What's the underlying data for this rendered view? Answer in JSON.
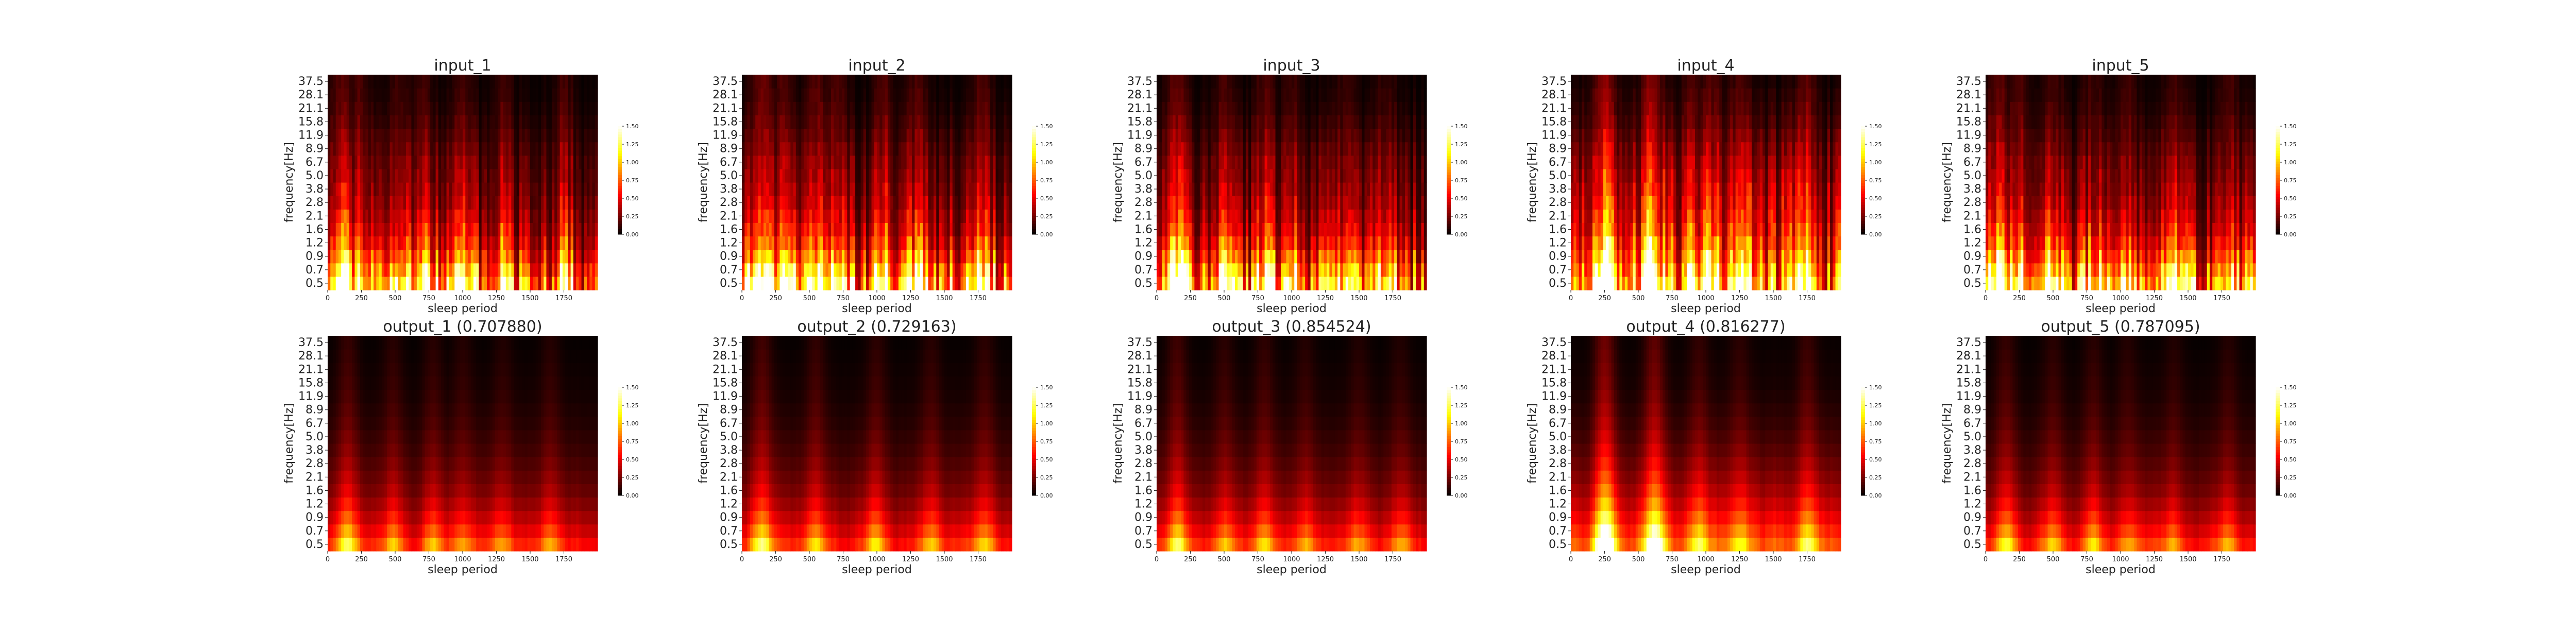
{
  "chart_data": [
    {
      "type": "heatmap",
      "title": "input_1",
      "xlabel": "sleep period",
      "ylabel": "frequency[Hz]",
      "xlim": [
        0,
        2000
      ],
      "x_ticks": [
        "0",
        "250",
        "500",
        "750",
        "1000",
        "1250",
        "1500",
        "1750"
      ],
      "y_ticks": [
        "0.5",
        "0.7",
        "0.9",
        "1.2",
        "1.6",
        "2.1",
        "2.8",
        "3.8",
        "5.0",
        "6.7",
        "8.9",
        "11.9",
        "15.8",
        "21.1",
        "28.1",
        "37.5"
      ],
      "colormap": "hot",
      "colorbar": {
        "range": [
          0,
          1.5
        ],
        "ticks": [
          "0.00",
          "0.25",
          "0.50",
          "0.75",
          "1.00",
          "1.25",
          "1.50"
        ]
      },
      "hotspots": [
        [
          100,
          0.95
        ],
        [
          240,
          0.75
        ],
        [
          520,
          0.6
        ],
        [
          700,
          0.65
        ],
        [
          1000,
          0.6
        ],
        [
          1300,
          0.6
        ],
        [
          1750,
          0.6
        ]
      ],
      "band_power": [
        1.1,
        0.9,
        0.7,
        0.55,
        0.45,
        0.38,
        0.32,
        0.28,
        0.25,
        0.22,
        0.18,
        0.14,
        0.1,
        0.07,
        0.05,
        0.04
      ],
      "smooth": false
    },
    {
      "type": "heatmap",
      "title": "input_2",
      "xlabel": "sleep period",
      "ylabel": "frequency[Hz]",
      "xlim": [
        0,
        2000
      ],
      "x_ticks": [
        "0",
        "250",
        "500",
        "750",
        "1000",
        "1250",
        "1500",
        "1750"
      ],
      "y_ticks": [
        "0.5",
        "0.7",
        "0.9",
        "1.2",
        "1.6",
        "2.1",
        "2.8",
        "3.8",
        "5.0",
        "6.7",
        "8.9",
        "11.9",
        "15.8",
        "21.1",
        "28.1",
        "37.5"
      ],
      "colormap": "hot",
      "colorbar": {
        "range": [
          0,
          1.5
        ],
        "ticks": [
          "0.00",
          "0.25",
          "0.50",
          "0.75",
          "1.00",
          "1.25",
          "1.50"
        ]
      },
      "hotspots": [
        [
          150,
          1.25
        ],
        [
          300,
          0.8
        ],
        [
          550,
          0.9
        ],
        [
          700,
          0.85
        ],
        [
          1050,
          0.8
        ],
        [
          1300,
          0.75
        ],
        [
          1780,
          0.8
        ]
      ],
      "band_power": [
        1.1,
        0.9,
        0.7,
        0.55,
        0.45,
        0.38,
        0.32,
        0.28,
        0.25,
        0.22,
        0.18,
        0.14,
        0.1,
        0.07,
        0.05,
        0.04
      ],
      "smooth": false
    },
    {
      "type": "heatmap",
      "title": "input_3",
      "xlabel": "sleep period",
      "ylabel": "frequency[Hz]",
      "xlim": [
        0,
        2000
      ],
      "x_ticks": [
        "0",
        "250",
        "500",
        "750",
        "1000",
        "1250",
        "1500",
        "1750"
      ],
      "y_ticks": [
        "0.5",
        "0.7",
        "0.9",
        "1.2",
        "1.6",
        "2.1",
        "2.8",
        "3.8",
        "5.0",
        "6.7",
        "8.9",
        "11.9",
        "15.8",
        "21.1",
        "28.1",
        "37.5"
      ],
      "colormap": "hot",
      "colorbar": {
        "range": [
          0,
          1.5
        ],
        "ticks": [
          "0.00",
          "0.25",
          "0.50",
          "0.75",
          "1.00",
          "1.25",
          "1.50"
        ]
      },
      "hotspots": [
        [
          150,
          1.05
        ],
        [
          500,
          0.65
        ],
        [
          800,
          0.75
        ],
        [
          1000,
          0.55
        ],
        [
          1400,
          0.5
        ],
        [
          1700,
          0.45
        ]
      ],
      "band_power": [
        1.1,
        0.9,
        0.7,
        0.55,
        0.45,
        0.38,
        0.32,
        0.28,
        0.25,
        0.22,
        0.18,
        0.14,
        0.1,
        0.07,
        0.05,
        0.04
      ],
      "smooth": false
    },
    {
      "type": "heatmap",
      "title": "input_4",
      "xlabel": "sleep period",
      "ylabel": "frequency[Hz]",
      "xlim": [
        0,
        2000
      ],
      "x_ticks": [
        "0",
        "250",
        "500",
        "750",
        "1000",
        "1250",
        "1500",
        "1750"
      ],
      "y_ticks": [
        "0.5",
        "0.7",
        "0.9",
        "1.2",
        "1.6",
        "2.1",
        "2.8",
        "3.8",
        "5.0",
        "6.7",
        "8.9",
        "11.9",
        "15.8",
        "21.1",
        "28.1",
        "37.5"
      ],
      "colormap": "hot",
      "colorbar": {
        "range": [
          0,
          1.5
        ],
        "ticks": [
          "0.00",
          "0.25",
          "0.50",
          "0.75",
          "1.00",
          "1.25",
          "1.50"
        ]
      },
      "hotspots": [
        [
          250,
          1.6
        ],
        [
          600,
          1.5
        ],
        [
          900,
          0.8
        ],
        [
          1050,
          0.7
        ],
        [
          1250,
          0.6
        ],
        [
          1750,
          0.85
        ]
      ],
      "band_power": [
        1.15,
        1.0,
        0.85,
        0.72,
        0.62,
        0.55,
        0.5,
        0.45,
        0.4,
        0.34,
        0.28,
        0.22,
        0.16,
        0.12,
        0.09,
        0.06
      ],
      "smooth": false
    },
    {
      "type": "heatmap",
      "title": "input_5",
      "xlabel": "sleep period",
      "ylabel": "frequency[Hz]",
      "xlim": [
        0,
        2000
      ],
      "x_ticks": [
        "0",
        "250",
        "500",
        "750",
        "1000",
        "1250",
        "1500",
        "1750"
      ],
      "y_ticks": [
        "0.5",
        "0.7",
        "0.9",
        "1.2",
        "1.6",
        "2.1",
        "2.8",
        "3.8",
        "5.0",
        "6.7",
        "8.9",
        "11.9",
        "15.8",
        "21.1",
        "28.1",
        "37.5"
      ],
      "colormap": "hot",
      "colorbar": {
        "range": [
          0,
          1.5
        ],
        "ticks": [
          "0.00",
          "0.25",
          "0.50",
          "0.75",
          "1.00",
          "1.25",
          "1.50"
        ]
      },
      "hotspots": [
        [
          100,
          0.95
        ],
        [
          250,
          0.8
        ],
        [
          500,
          0.6
        ],
        [
          800,
          0.6
        ],
        [
          1050,
          0.65
        ],
        [
          1400,
          0.55
        ],
        [
          1800,
          0.7
        ]
      ],
      "band_power": [
        1.1,
        0.9,
        0.7,
        0.55,
        0.45,
        0.38,
        0.32,
        0.28,
        0.25,
        0.22,
        0.18,
        0.14,
        0.1,
        0.07,
        0.05,
        0.04
      ],
      "smooth": false
    },
    {
      "type": "heatmap",
      "title": "output_1 (0.707880)",
      "xlabel": "sleep period",
      "ylabel": "frequency[Hz]",
      "xlim": [
        0,
        2000
      ],
      "x_ticks": [
        "0",
        "250",
        "500",
        "750",
        "1000",
        "1250",
        "1500",
        "1750"
      ],
      "y_ticks": [
        "0.5",
        "0.7",
        "0.9",
        "1.2",
        "1.6",
        "2.1",
        "2.8",
        "3.8",
        "5.0",
        "6.7",
        "8.9",
        "11.9",
        "15.8",
        "21.1",
        "28.1",
        "37.5"
      ],
      "colormap": "hot",
      "colorbar": {
        "range": [
          0,
          1.5
        ],
        "ticks": [
          "0.00",
          "0.25",
          "0.50",
          "0.75",
          "1.00",
          "1.25",
          "1.50"
        ]
      },
      "hotspots": [
        [
          150,
          0.7
        ],
        [
          480,
          0.5
        ],
        [
          780,
          0.5
        ],
        [
          1000,
          0.45
        ],
        [
          1300,
          0.4
        ],
        [
          1650,
          0.45
        ]
      ],
      "band_power": [
        0.75,
        0.6,
        0.48,
        0.38,
        0.3,
        0.25,
        0.2,
        0.16,
        0.13,
        0.1,
        0.08,
        0.06,
        0.05,
        0.04,
        0.03,
        0.02
      ],
      "smooth": true
    },
    {
      "type": "heatmap",
      "title": "output_2 (0.729163)",
      "xlabel": "sleep period",
      "ylabel": "frequency[Hz]",
      "xlim": [
        0,
        2000
      ],
      "x_ticks": [
        "0",
        "250",
        "500",
        "750",
        "1000",
        "1250",
        "1500",
        "1750"
      ],
      "y_ticks": [
        "0.5",
        "0.7",
        "0.9",
        "1.2",
        "1.6",
        "2.1",
        "2.8",
        "3.8",
        "5.0",
        "6.7",
        "8.9",
        "11.9",
        "15.8",
        "21.1",
        "28.1",
        "37.5"
      ],
      "colormap": "hot",
      "colorbar": {
        "range": [
          0,
          1.5
        ],
        "ticks": [
          "0.00",
          "0.25",
          "0.50",
          "0.75",
          "1.00",
          "1.25",
          "1.50"
        ]
      },
      "hotspots": [
        [
          150,
          0.9
        ],
        [
          550,
          0.65
        ],
        [
          1000,
          0.55
        ],
        [
          1400,
          0.5
        ],
        [
          1800,
          0.55
        ]
      ],
      "band_power": [
        0.75,
        0.6,
        0.48,
        0.38,
        0.3,
        0.25,
        0.2,
        0.16,
        0.13,
        0.1,
        0.08,
        0.06,
        0.05,
        0.04,
        0.03,
        0.02
      ],
      "smooth": true
    },
    {
      "type": "heatmap",
      "title": "output_3 (0.854524)",
      "xlabel": "sleep period",
      "ylabel": "frequency[Hz]",
      "xlim": [
        0,
        2000
      ],
      "x_ticks": [
        "0",
        "250",
        "500",
        "750",
        "1000",
        "1250",
        "1500",
        "1750"
      ],
      "y_ticks": [
        "0.5",
        "0.7",
        "0.9",
        "1.2",
        "1.6",
        "2.1",
        "2.8",
        "3.8",
        "5.0",
        "6.7",
        "8.9",
        "11.9",
        "15.8",
        "21.1",
        "28.1",
        "37.5"
      ],
      "colormap": "hot",
      "colorbar": {
        "range": [
          0,
          1.5
        ],
        "ticks": [
          "0.00",
          "0.25",
          "0.50",
          "0.75",
          "1.00",
          "1.25",
          "1.50"
        ]
      },
      "hotspots": [
        [
          150,
          0.85
        ],
        [
          500,
          0.55
        ],
        [
          800,
          0.6
        ],
        [
          1100,
          0.45
        ],
        [
          1500,
          0.4
        ],
        [
          1800,
          0.4
        ]
      ],
      "band_power": [
        0.75,
        0.6,
        0.48,
        0.38,
        0.3,
        0.25,
        0.2,
        0.16,
        0.13,
        0.1,
        0.08,
        0.06,
        0.05,
        0.04,
        0.03,
        0.02
      ],
      "smooth": true
    },
    {
      "type": "heatmap",
      "title": "output_4 (0.816277)",
      "xlabel": "sleep period",
      "ylabel": "frequency[Hz]",
      "xlim": [
        0,
        2000
      ],
      "x_ticks": [
        "0",
        "250",
        "500",
        "750",
        "1000",
        "1250",
        "1500",
        "1750"
      ],
      "y_ticks": [
        "0.5",
        "0.7",
        "0.9",
        "1.2",
        "1.6",
        "2.1",
        "2.8",
        "3.8",
        "5.0",
        "6.7",
        "8.9",
        "11.9",
        "15.8",
        "21.1",
        "28.1",
        "37.5"
      ],
      "colormap": "hot",
      "colorbar": {
        "range": [
          0,
          1.5
        ],
        "ticks": [
          "0.00",
          "0.25",
          "0.50",
          "0.75",
          "1.00",
          "1.25",
          "1.50"
        ]
      },
      "hotspots": [
        [
          250,
          1.55
        ],
        [
          620,
          1.3
        ],
        [
          950,
          0.6
        ],
        [
          1250,
          0.5
        ],
        [
          1750,
          0.7
        ]
      ],
      "band_power": [
        0.95,
        0.8,
        0.66,
        0.54,
        0.44,
        0.36,
        0.29,
        0.23,
        0.18,
        0.14,
        0.11,
        0.08,
        0.06,
        0.05,
        0.04,
        0.03
      ],
      "smooth": true
    },
    {
      "type": "heatmap",
      "title": "output_5 (0.787095)",
      "xlabel": "sleep period",
      "ylabel": "frequency[Hz]",
      "xlim": [
        0,
        2000
      ],
      "x_ticks": [
        "0",
        "250",
        "500",
        "750",
        "1000",
        "1250",
        "1500",
        "1750"
      ],
      "y_ticks": [
        "0.5",
        "0.7",
        "0.9",
        "1.2",
        "1.6",
        "2.1",
        "2.8",
        "3.8",
        "5.0",
        "6.7",
        "8.9",
        "11.9",
        "15.8",
        "21.1",
        "28.1",
        "37.5"
      ],
      "colormap": "hot",
      "colorbar": {
        "range": [
          0,
          1.5
        ],
        "ticks": [
          "0.00",
          "0.25",
          "0.50",
          "0.75",
          "1.00",
          "1.25",
          "1.50"
        ]
      },
      "hotspots": [
        [
          150,
          0.7
        ],
        [
          500,
          0.5
        ],
        [
          800,
          0.5
        ],
        [
          1050,
          0.45
        ],
        [
          1400,
          0.4
        ],
        [
          1800,
          0.45
        ]
      ],
      "band_power": [
        0.75,
        0.6,
        0.48,
        0.38,
        0.3,
        0.25,
        0.2,
        0.16,
        0.13,
        0.1,
        0.08,
        0.06,
        0.05,
        0.04,
        0.03,
        0.02
      ],
      "smooth": true
    }
  ]
}
